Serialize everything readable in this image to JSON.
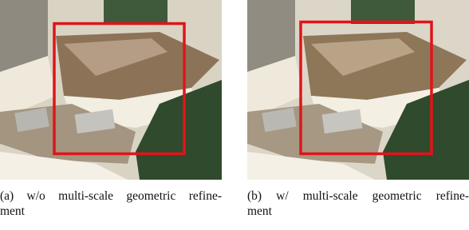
{
  "figures": [
    {
      "caption_lines": [
        "(a) w/o multi-scale geometric refine-",
        "ment"
      ]
    },
    {
      "caption_lines": [
        "(b) w/ multi-scale geometric refine-",
        "ment"
      ]
    }
  ]
}
